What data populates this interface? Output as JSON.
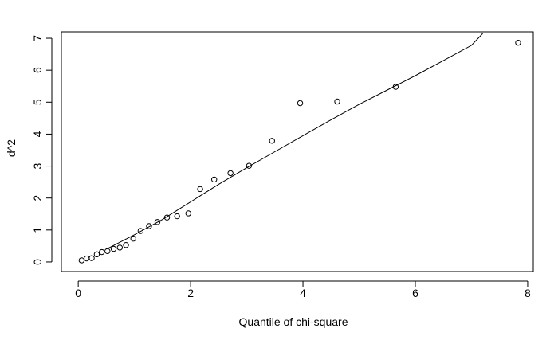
{
  "chart_data": {
    "type": "scatter",
    "title": "",
    "xlabel": "Quantile of chi-square",
    "ylabel": "d^2",
    "xlim": [
      -0.3,
      8.1
    ],
    "ylim": [
      -0.3,
      7.2
    ],
    "x_ticks": [
      0,
      2,
      4,
      6,
      8
    ],
    "y_ticks": [
      0,
      1,
      2,
      3,
      4,
      5,
      6,
      7
    ],
    "grid": false,
    "points": [
      {
        "x": 0.06,
        "y": 0.05
      },
      {
        "x": 0.15,
        "y": 0.11
      },
      {
        "x": 0.24,
        "y": 0.12
      },
      {
        "x": 0.33,
        "y": 0.24
      },
      {
        "x": 0.42,
        "y": 0.31
      },
      {
        "x": 0.52,
        "y": 0.34
      },
      {
        "x": 0.63,
        "y": 0.41
      },
      {
        "x": 0.74,
        "y": 0.45
      },
      {
        "x": 0.85,
        "y": 0.53
      },
      {
        "x": 0.98,
        "y": 0.73
      },
      {
        "x": 1.11,
        "y": 0.97
      },
      {
        "x": 1.26,
        "y": 1.12
      },
      {
        "x": 1.41,
        "y": 1.25
      },
      {
        "x": 1.58,
        "y": 1.39
      },
      {
        "x": 1.76,
        "y": 1.43
      },
      {
        "x": 1.96,
        "y": 1.52
      },
      {
        "x": 2.17,
        "y": 2.28
      },
      {
        "x": 2.42,
        "y": 2.58
      },
      {
        "x": 2.71,
        "y": 2.78
      },
      {
        "x": 3.04,
        "y": 3.01
      },
      {
        "x": 3.45,
        "y": 3.79
      },
      {
        "x": 3.95,
        "y": 4.97
      },
      {
        "x": 4.61,
        "y": 5.02
      },
      {
        "x": 5.65,
        "y": 5.48
      },
      {
        "x": 7.83,
        "y": 6.86
      }
    ],
    "reference_line": [
      {
        "x": 0.5,
        "y": 0.4
      },
      {
        "x": 1.0,
        "y": 0.85
      },
      {
        "x": 1.5,
        "y": 1.33
      },
      {
        "x": 2.0,
        "y": 1.88
      },
      {
        "x": 2.5,
        "y": 2.43
      },
      {
        "x": 3.0,
        "y": 2.95
      },
      {
        "x": 3.5,
        "y": 3.45
      },
      {
        "x": 4.0,
        "y": 3.95
      },
      {
        "x": 4.5,
        "y": 4.45
      },
      {
        "x": 5.0,
        "y": 4.93
      },
      {
        "x": 5.5,
        "y": 5.38
      },
      {
        "x": 6.0,
        "y": 5.83
      },
      {
        "x": 6.5,
        "y": 6.3
      },
      {
        "x": 7.0,
        "y": 6.78
      },
      {
        "x": 7.2,
        "y": 7.15
      }
    ]
  }
}
